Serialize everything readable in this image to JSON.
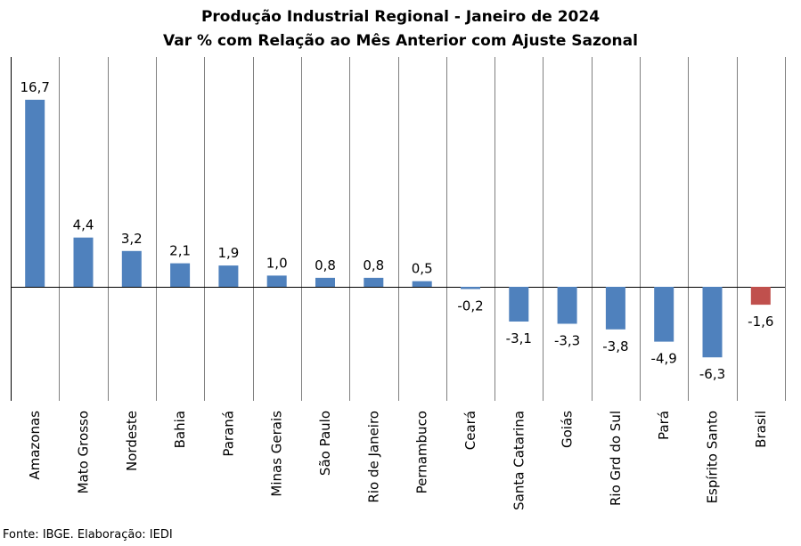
{
  "chart_data": {
    "type": "bar",
    "title": "Produção Industrial Regional  - Janeiro de 2024",
    "subtitle": "Var % com Relação ao Mês Anterior com Ajuste Sazonal",
    "categories": [
      "Amazonas",
      "Mato Grosso",
      "Nordeste",
      "Bahia",
      "Paraná",
      "Minas Gerais",
      "São Paulo",
      "Rio de Janeiro",
      "Pernambuco",
      "Ceará",
      "Santa Catarina",
      "Goiás",
      "Rio Grd do Sul",
      "Pará",
      "Espírito Santo",
      "Brasil"
    ],
    "values": [
      16.7,
      4.4,
      3.2,
      2.1,
      1.9,
      1.0,
      0.8,
      0.8,
      0.5,
      -0.2,
      -3.1,
      -3.3,
      -3.8,
      -4.9,
      -6.3,
      -1.6
    ],
    "value_labels": [
      "16,7",
      "4,4",
      "3,2",
      "2,1",
      "1,9",
      "1,0",
      "0,8",
      "0,8",
      "0,5",
      "-0,2",
      "-3,1",
      "-3,3",
      "-3,8",
      "-4,9",
      "-6,3",
      "-1,6"
    ],
    "highlight_category": "Brasil",
    "colors": {
      "default": "#4F81BD",
      "highlight": "#C0504D"
    },
    "ylim": [
      -10,
      20
    ],
    "grid": "vertical separators between categories",
    "legend": "none",
    "xlabel": "",
    "ylabel": ""
  },
  "source": "Fonte: IBGE. Elaboração: IEDI"
}
